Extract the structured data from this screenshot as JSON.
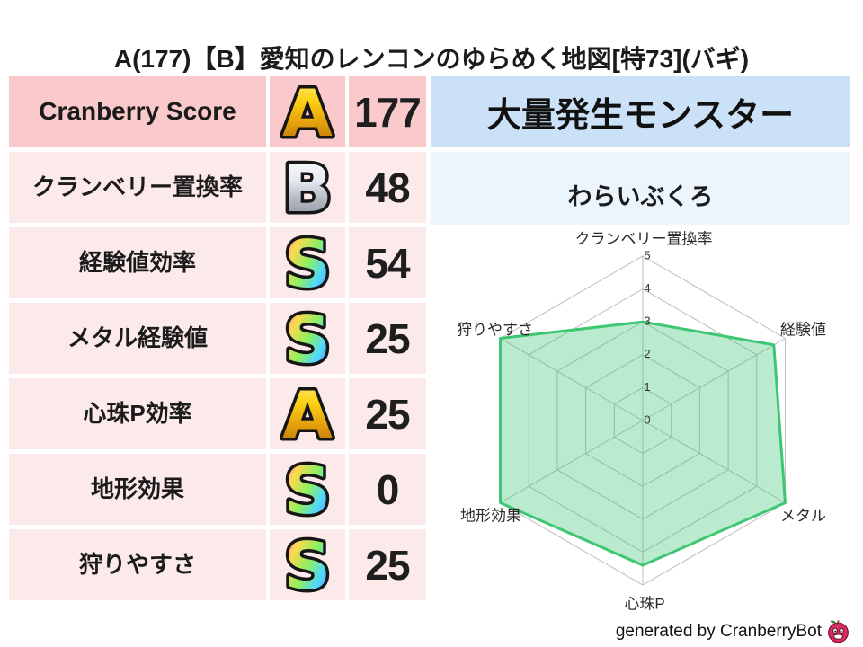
{
  "title": "A(177)【B】愛知のレンコンのゆらめく地図[特73](バギ)",
  "stats": [
    {
      "label": "Cranberry Score",
      "grade": "A",
      "value": "177",
      "highlight": true
    },
    {
      "label": "クランベリー置換率",
      "grade": "B",
      "value": "48",
      "highlight": false
    },
    {
      "label": "経験値効率",
      "grade": "S",
      "value": "54",
      "highlight": false
    },
    {
      "label": "メタル経験値",
      "grade": "S",
      "value": "25",
      "highlight": false
    },
    {
      "label": "心珠P効率",
      "grade": "A",
      "value": "25",
      "highlight": false
    },
    {
      "label": "地形効果",
      "grade": "S",
      "value": "0",
      "highlight": false
    },
    {
      "label": "狩りやすさ",
      "grade": "S",
      "value": "25",
      "highlight": false
    }
  ],
  "monster_panel": {
    "header": "大量発生モンスター",
    "name": "わらいぶくろ"
  },
  "chart_data": {
    "type": "radar",
    "categories": [
      "クランベリー置換率",
      "経験値",
      "メタル",
      "心珠P",
      "地形効果",
      "狩りやすさ"
    ],
    "values": [
      3,
      4.6,
      5,
      4.4,
      5,
      5
    ],
    "ticks": [
      0,
      1,
      2,
      3,
      4,
      5
    ],
    "range": [
      0,
      5
    ],
    "grid": "hexagonal rings with spokes",
    "legend": "none",
    "fill_color": "rgba(61,199,115,0.35)",
    "line_color": "#3dc773",
    "grid_color": "#bdbdbd",
    "tick_color": "#333333",
    "label_color": "#2a2a2a"
  },
  "footer": {
    "credit": "generated by CranberryBot",
    "icon": "cranberry-icon"
  },
  "colors": {
    "row_highlight_bg": "#f9c9cb",
    "row_bg": "#fce9e9",
    "panel_header_bg": "#cbe1f7",
    "panel_value_bg": "#ecf4fc",
    "grade_gold_top": "#ffee7a",
    "grade_gold_bottom": "#c9830a",
    "grade_silver_top": "#ffffff",
    "grade_silver_bottom": "#9aa1ab",
    "grade_rainbow": [
      "#ff5fd7",
      "#ffd84f",
      "#8ef05f",
      "#4fd8ff",
      "#6f6fff"
    ]
  }
}
